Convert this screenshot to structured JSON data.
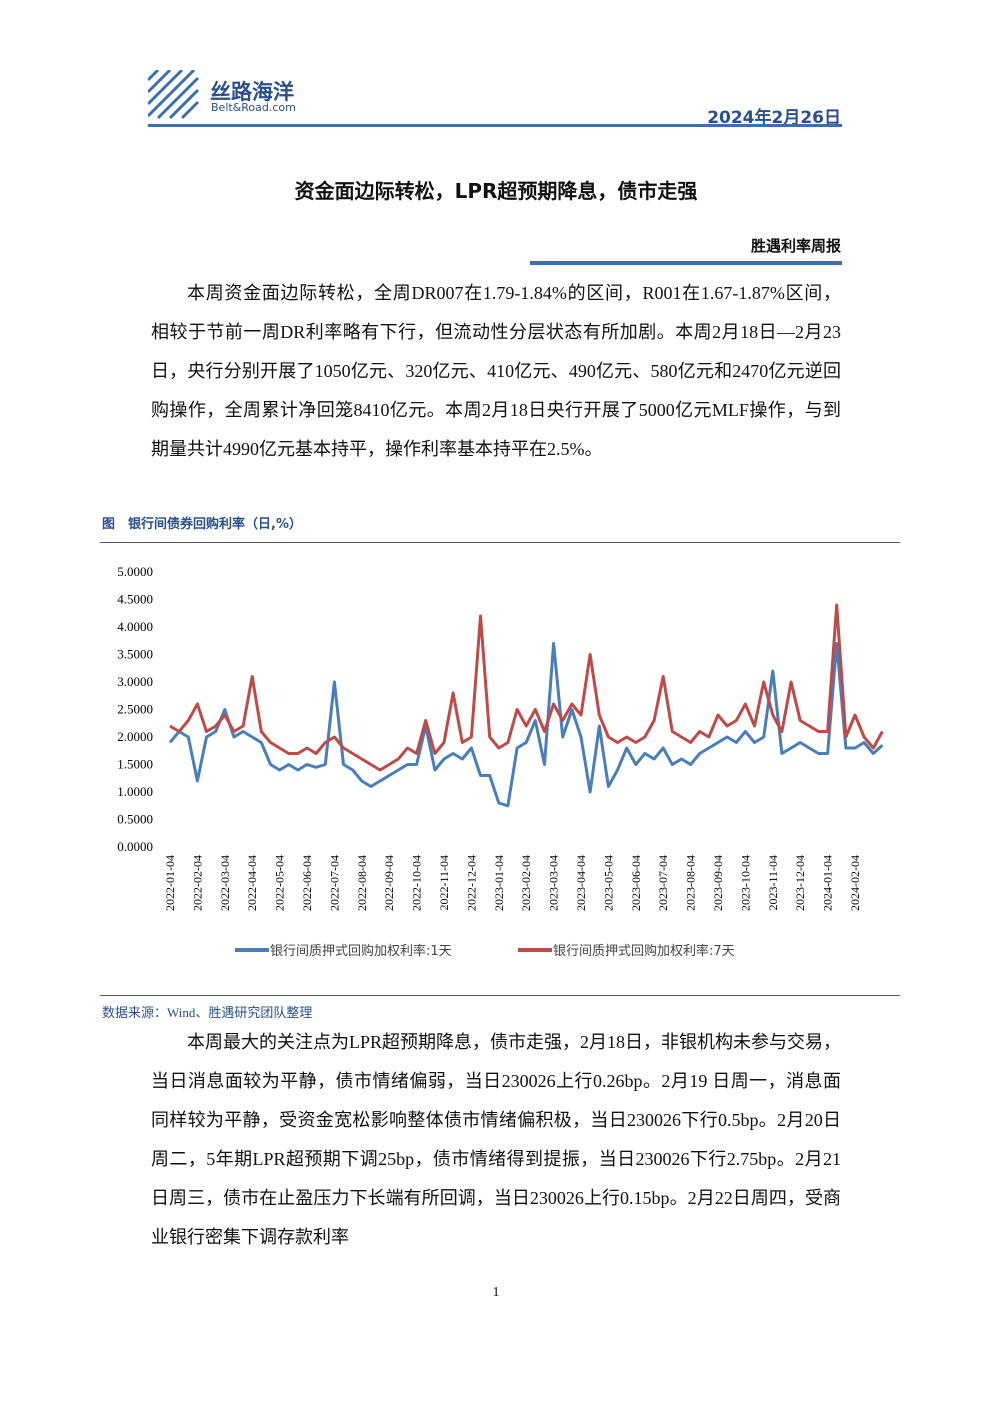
{
  "header": {
    "logo_name": "丝路海洋",
    "logo_sub": "Belt&Road.com",
    "date": "2024年2月26日"
  },
  "title": "资金面边际转松，LPR超预期降息，债市走强",
  "subtitle": "胜遇利率周报",
  "paragraphs": [
    "本周资金面边际转松，全周DR007在1.79-1.84%的区间，R001在1.67-1.87%区间，相较于节前一周DR利率略有下行，但流动性分层状态有所加剧。本周2月18日—2月23日，央行分别开展了1050亿元、320亿元、410亿元、490亿元、580亿元和2470亿元逆回购操作，全周累计净回笼8410亿元。本周2月18日央行开展了5000亿元MLF操作，与到期量共计4990亿元基本持平，操作利率基本持平在2.5%。",
    "本周最大的关注点为LPR超预期降息，债市走强，2月18日，非银机构未参与交易，当日消息面较为平静，债市情绪偏弱，当日230026上行0.26bp。2月19 日周一，消息面同样较为平静，受资金宽松影响整体债市情绪偏积极，当日230026下行0.5bp。2月20日周二，5年期LPR超预期下调25bp，债市情绪得到提振，当日230026下行2.75bp。2月21日周三，债市在止盈压力下长端有所回调，当日230026上行0.15bp。2月22日周四，受商业银行密集下调存款利率"
  ],
  "figure_caption": "图　银行间债券回购利率（日,%）",
  "source": "数据来源：Wind、胜遇研究团队整理",
  "page_number": "1",
  "chart_data": {
    "type": "line",
    "categories": [
      "2022-01-04",
      null,
      null,
      "2022-02-04",
      null,
      null,
      "2022-03-04",
      null,
      null,
      "2022-04-04",
      null,
      null,
      "2022-05-04",
      null,
      null,
      "2022-06-04",
      null,
      null,
      "2022-07-04",
      null,
      null,
      "2022-08-04",
      null,
      null,
      "2022-09-04",
      null,
      null,
      "2022-10-04",
      null,
      null,
      "2022-11-04",
      null,
      null,
      "2022-12-04",
      null,
      null,
      "2023-01-04",
      null,
      null,
      "2023-02-04",
      null,
      null,
      "2023-03-04",
      null,
      null,
      "2023-04-04",
      null,
      null,
      "2023-05-04",
      null,
      null,
      "2023-06-04",
      null,
      null,
      "2023-07-04",
      null,
      null,
      "2023-08-04",
      null,
      null,
      "2023-09-04",
      null,
      null,
      "2023-10-04",
      null,
      null,
      "2023-11-04",
      null,
      null,
      "2023-12-04",
      null,
      null,
      "2024-01-04",
      null,
      null,
      "2024-02-04",
      null,
      null,
      null
    ],
    "series": [
      {
        "name": "银行间质押式回购加权利率:1天",
        "color": "#4a7ebb",
        "values": [
          1.9,
          2.1,
          2.0,
          1.2,
          2.0,
          2.1,
          2.5,
          2.0,
          2.1,
          2.0,
          1.9,
          1.5,
          1.4,
          1.5,
          1.4,
          1.5,
          1.45,
          1.5,
          3.0,
          1.5,
          1.4,
          1.2,
          1.1,
          1.2,
          1.3,
          1.4,
          1.5,
          1.5,
          2.2,
          1.4,
          1.6,
          1.7,
          1.6,
          1.8,
          1.3,
          1.3,
          0.8,
          0.75,
          1.8,
          1.9,
          2.3,
          1.5,
          3.7,
          2.0,
          2.5,
          2.0,
          1.0,
          2.2,
          1.1,
          1.4,
          1.8,
          1.5,
          1.7,
          1.6,
          1.8,
          1.5,
          1.6,
          1.5,
          1.7,
          1.8,
          1.9,
          2.0,
          1.9,
          2.1,
          1.9,
          2.0,
          3.2,
          1.7,
          1.8,
          1.9,
          1.8,
          1.7,
          1.7,
          3.7,
          1.8,
          1.8,
          1.9,
          1.7,
          1.85
        ]
      },
      {
        "name": "银行间质押式回购加权利率:7天",
        "color": "#be4b48",
        "values": [
          2.2,
          2.1,
          2.3,
          2.6,
          2.1,
          2.2,
          2.4,
          2.1,
          2.2,
          3.1,
          2.1,
          1.9,
          1.8,
          1.7,
          1.7,
          1.8,
          1.7,
          1.9,
          2.0,
          1.8,
          1.7,
          1.6,
          1.5,
          1.4,
          1.5,
          1.6,
          1.8,
          1.7,
          2.3,
          1.7,
          1.9,
          2.8,
          1.9,
          2.0,
          4.2,
          2.0,
          1.8,
          1.9,
          2.5,
          2.2,
          2.5,
          2.1,
          2.6,
          2.3,
          2.6,
          2.4,
          3.5,
          2.4,
          2.0,
          1.9,
          2.0,
          1.9,
          2.0,
          2.3,
          3.1,
          2.1,
          2.0,
          1.9,
          2.1,
          2.0,
          2.4,
          2.2,
          2.3,
          2.6,
          2.2,
          3.0,
          2.4,
          2.1,
          3.0,
          2.3,
          2.2,
          2.1,
          2.1,
          4.4,
          2.0,
          2.4,
          2.0,
          1.8,
          2.1
        ]
      }
    ],
    "ylim": [
      0,
      5
    ],
    "yticks": [
      {
        "value": 0,
        "label": "0.0000"
      },
      {
        "value": 0.5,
        "label": "0.5000"
      },
      {
        "value": 1,
        "label": "1.0000"
      },
      {
        "value": 1.5,
        "label": "1.5000"
      },
      {
        "value": 2,
        "label": "2.0000"
      },
      {
        "value": 2.5,
        "label": "2.5000"
      },
      {
        "value": 3,
        "label": "3.0000"
      },
      {
        "value": 3.5,
        "label": "3.5000"
      },
      {
        "value": 4,
        "label": "4.0000"
      },
      {
        "value": 4.5,
        "label": "4.5000"
      },
      {
        "value": 5,
        "label": "5.0000"
      }
    ],
    "grid": false
  }
}
